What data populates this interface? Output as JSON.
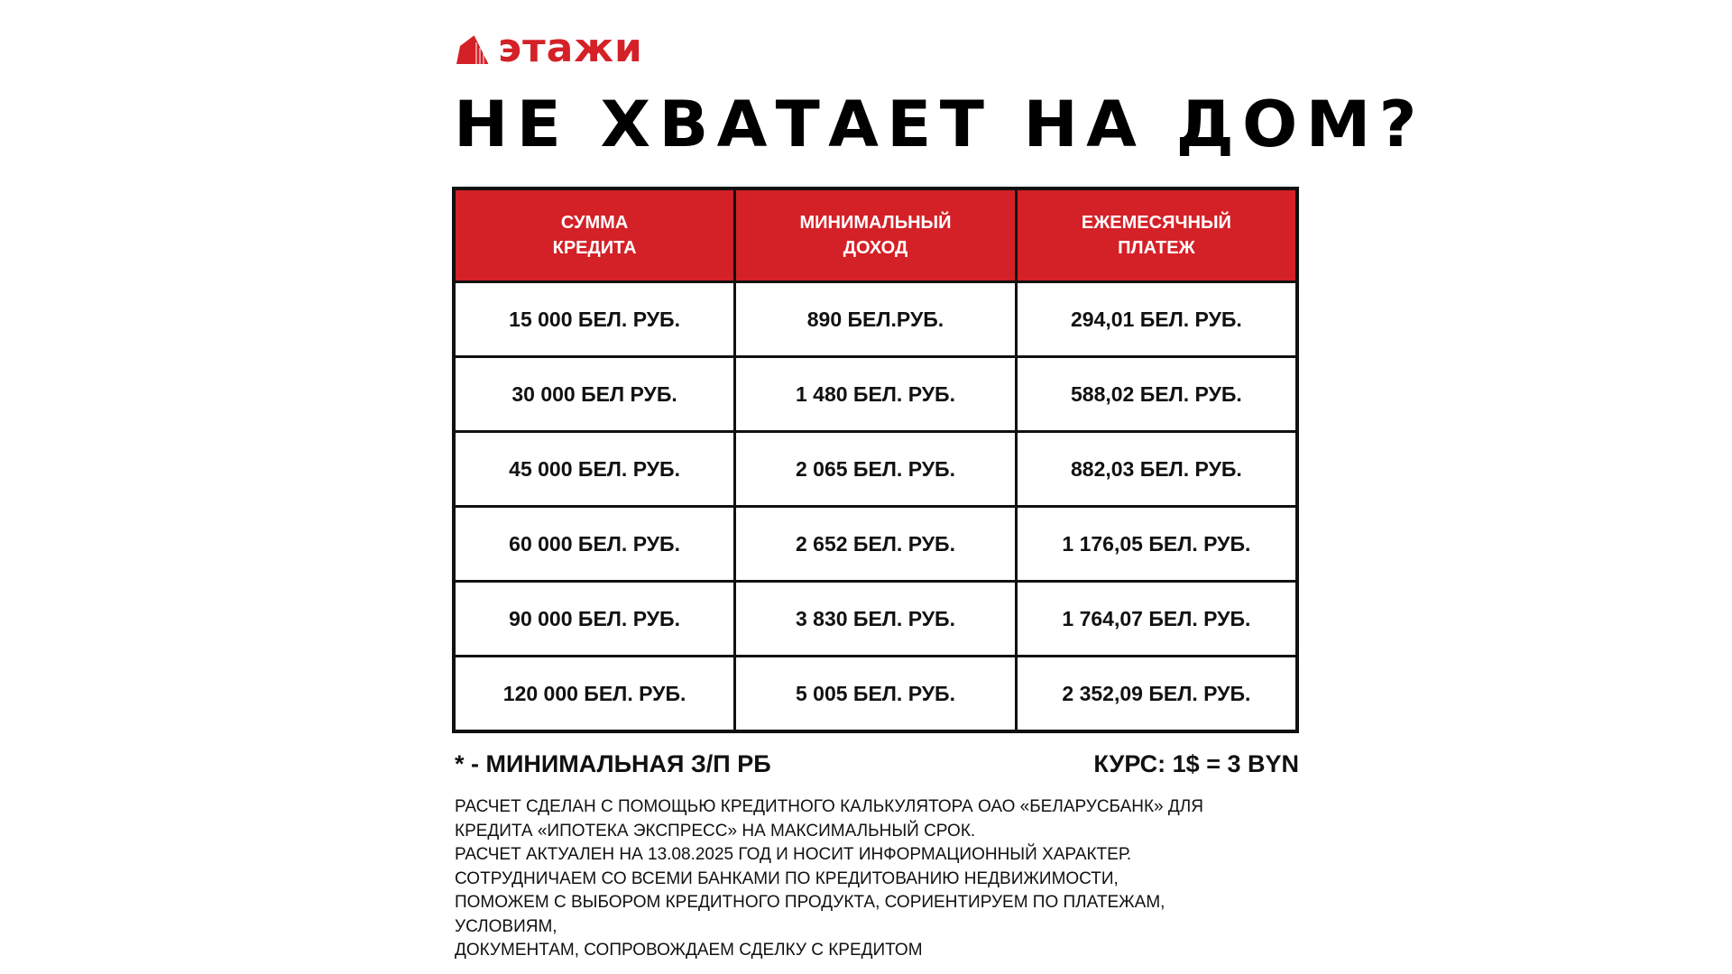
{
  "brand": {
    "name": "этажи",
    "color": "#d42027"
  },
  "title": "НЕ ХВАТАЕТ НА ДОМ?",
  "table": {
    "headers": [
      [
        "СУММА",
        "КРЕДИТА"
      ],
      [
        "МИНИМАЛЬНЫЙ",
        "ДОХОД"
      ],
      [
        "ЕЖЕМЕСЯЧНЫЙ",
        "ПЛАТЕЖ"
      ]
    ],
    "rows": [
      [
        "15 000 БЕЛ. РУБ.",
        "890 БЕЛ.РУБ.",
        "294,01 БЕЛ. РУБ."
      ],
      [
        "30 000 БЕЛ РУБ.",
        "1 480 БЕЛ. РУБ.",
        "588,02 БЕЛ. РУБ."
      ],
      [
        "45 000 БЕЛ. РУБ.",
        "2 065 БЕЛ. РУБ.",
        "882,03 БЕЛ. РУБ."
      ],
      [
        "60 000 БЕЛ. РУБ.",
        "2 652 БЕЛ. РУБ.",
        "1 176,05 БЕЛ. РУБ."
      ],
      [
        "90 000 БЕЛ. РУБ.",
        "3 830 БЕЛ. РУБ.",
        "1 764,07 БЕЛ. РУБ."
      ],
      [
        "120 000 БЕЛ. РУБ.",
        "5 005 БЕЛ. РУБ.",
        "2 352,09 БЕЛ. РУБ."
      ]
    ]
  },
  "footnote": "* - МИНИМАЛЬНАЯ З/П РБ",
  "rate": "КУРС: 1$ = 3 BYN",
  "disclaimer": [
    "РАСЧЕТ СДЕЛАН С ПОМОЩЬЮ КРЕДИТНОГО КАЛЬКУЛЯТОРА ОАО «БЕЛАРУСБАНК» ДЛЯ",
    "КРЕДИТА «ИПОТЕКА ЭКСПРЕСС» НА МАКСИМАЛЬНЫЙ СРОК.",
    "РАСЧЕТ АКТУАЛЕН НА 13.08.2025 ГОД И НОСИТ ИНФОРМАЦИОННЫЙ ХАРАКТЕР.",
    "СОТРУДНИЧАЕМ СО ВСЕМИ БАНКАМИ ПО КРЕДИТОВАНИЮ НЕДВИЖИМОСТИ,",
    "ПОМОЖЕМ С ВЫБОРОМ КРЕДИТНОГО ПРОДУКТА, СОРИЕНТИРУЕМ ПО ПЛАТЕЖАМ,",
    "УСЛОВИЯМ,",
    "ДОКУМЕНТАМ, СОПРОВОЖДАЕМ СДЕЛКУ С КРЕДИТОМ"
  ]
}
